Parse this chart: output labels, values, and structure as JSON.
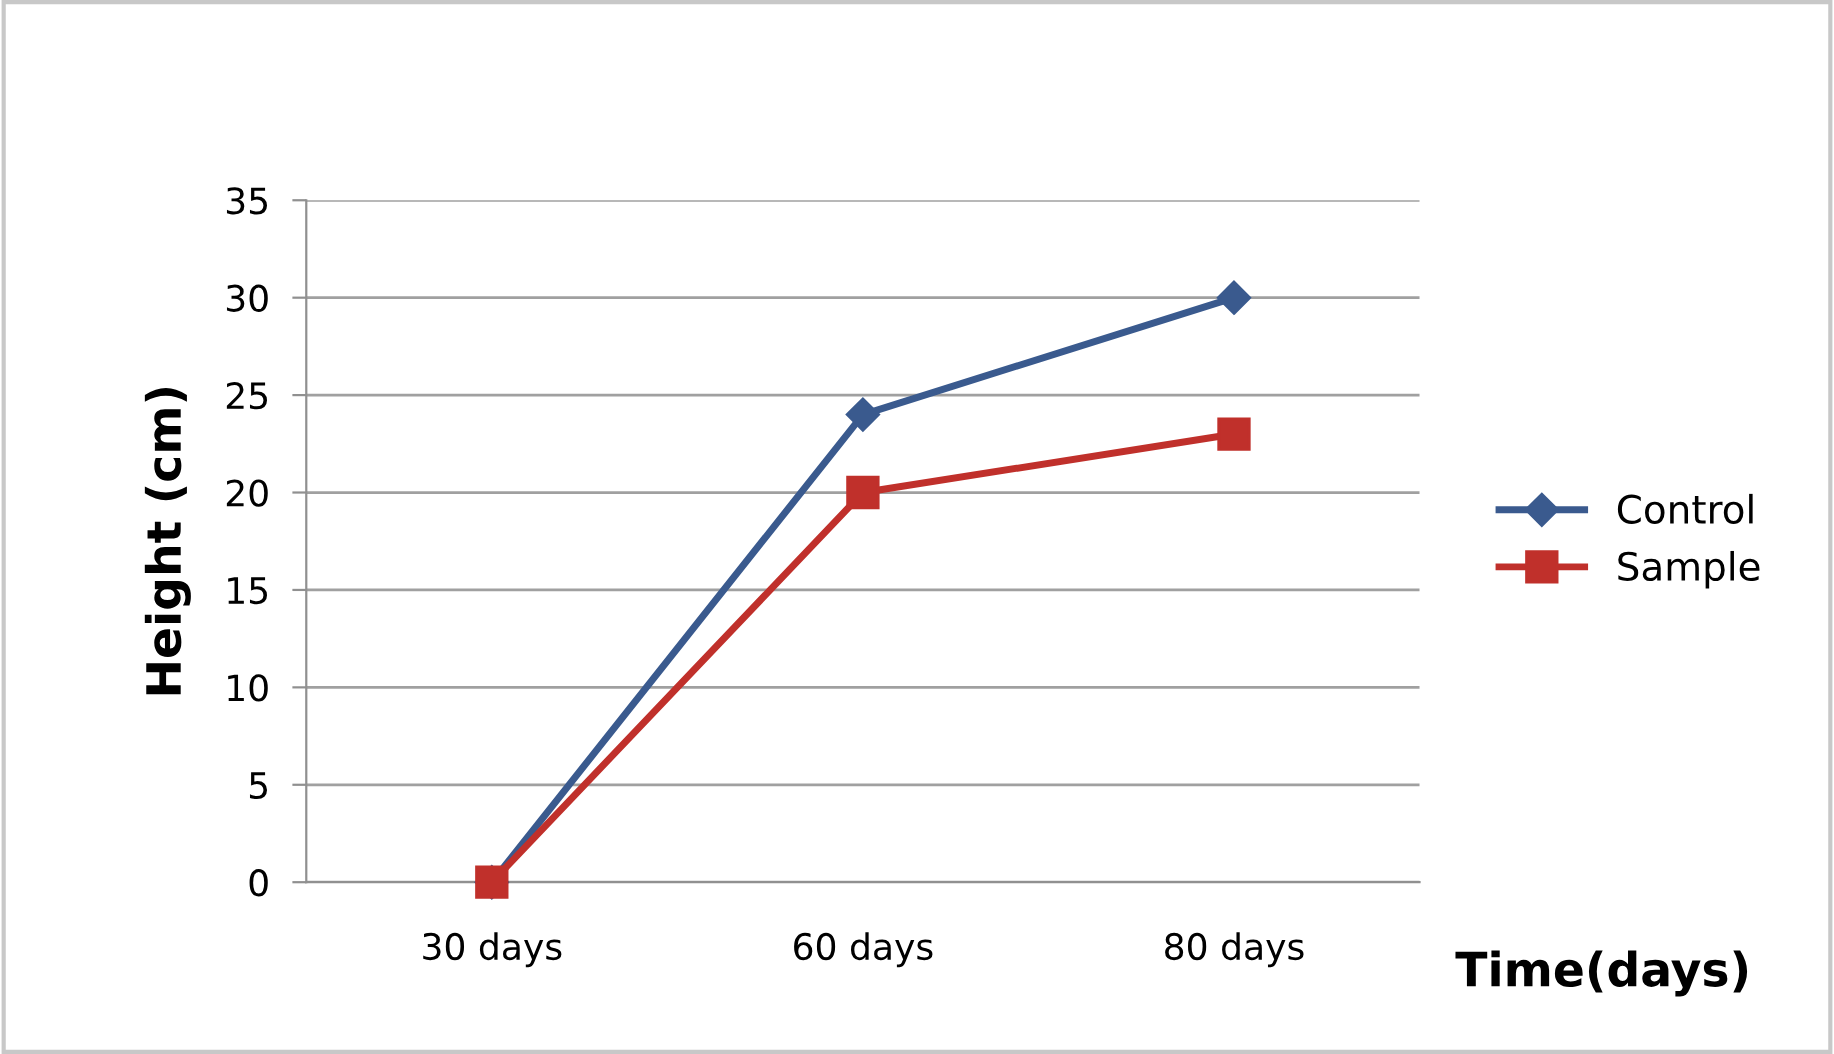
{
  "chart_data": {
    "type": "line",
    "xlabel": "Time(days)",
    "ylabel": "Height (cm)",
    "categories": [
      "30 days",
      "60 days",
      "80 days"
    ],
    "series": [
      {
        "name": "Control",
        "color": "#3a5a8e",
        "marker": "diamond",
        "values": [
          0,
          24,
          30
        ]
      },
      {
        "name": "Sample",
        "color": "#c0302b",
        "marker": "square",
        "values": [
          0,
          20,
          23
        ]
      }
    ],
    "ylim": [
      0,
      35
    ],
    "yticks": [
      0,
      5,
      10,
      15,
      20,
      25,
      30,
      35
    ],
    "grid": "y",
    "legend": "right",
    "line_style": "solid"
  }
}
